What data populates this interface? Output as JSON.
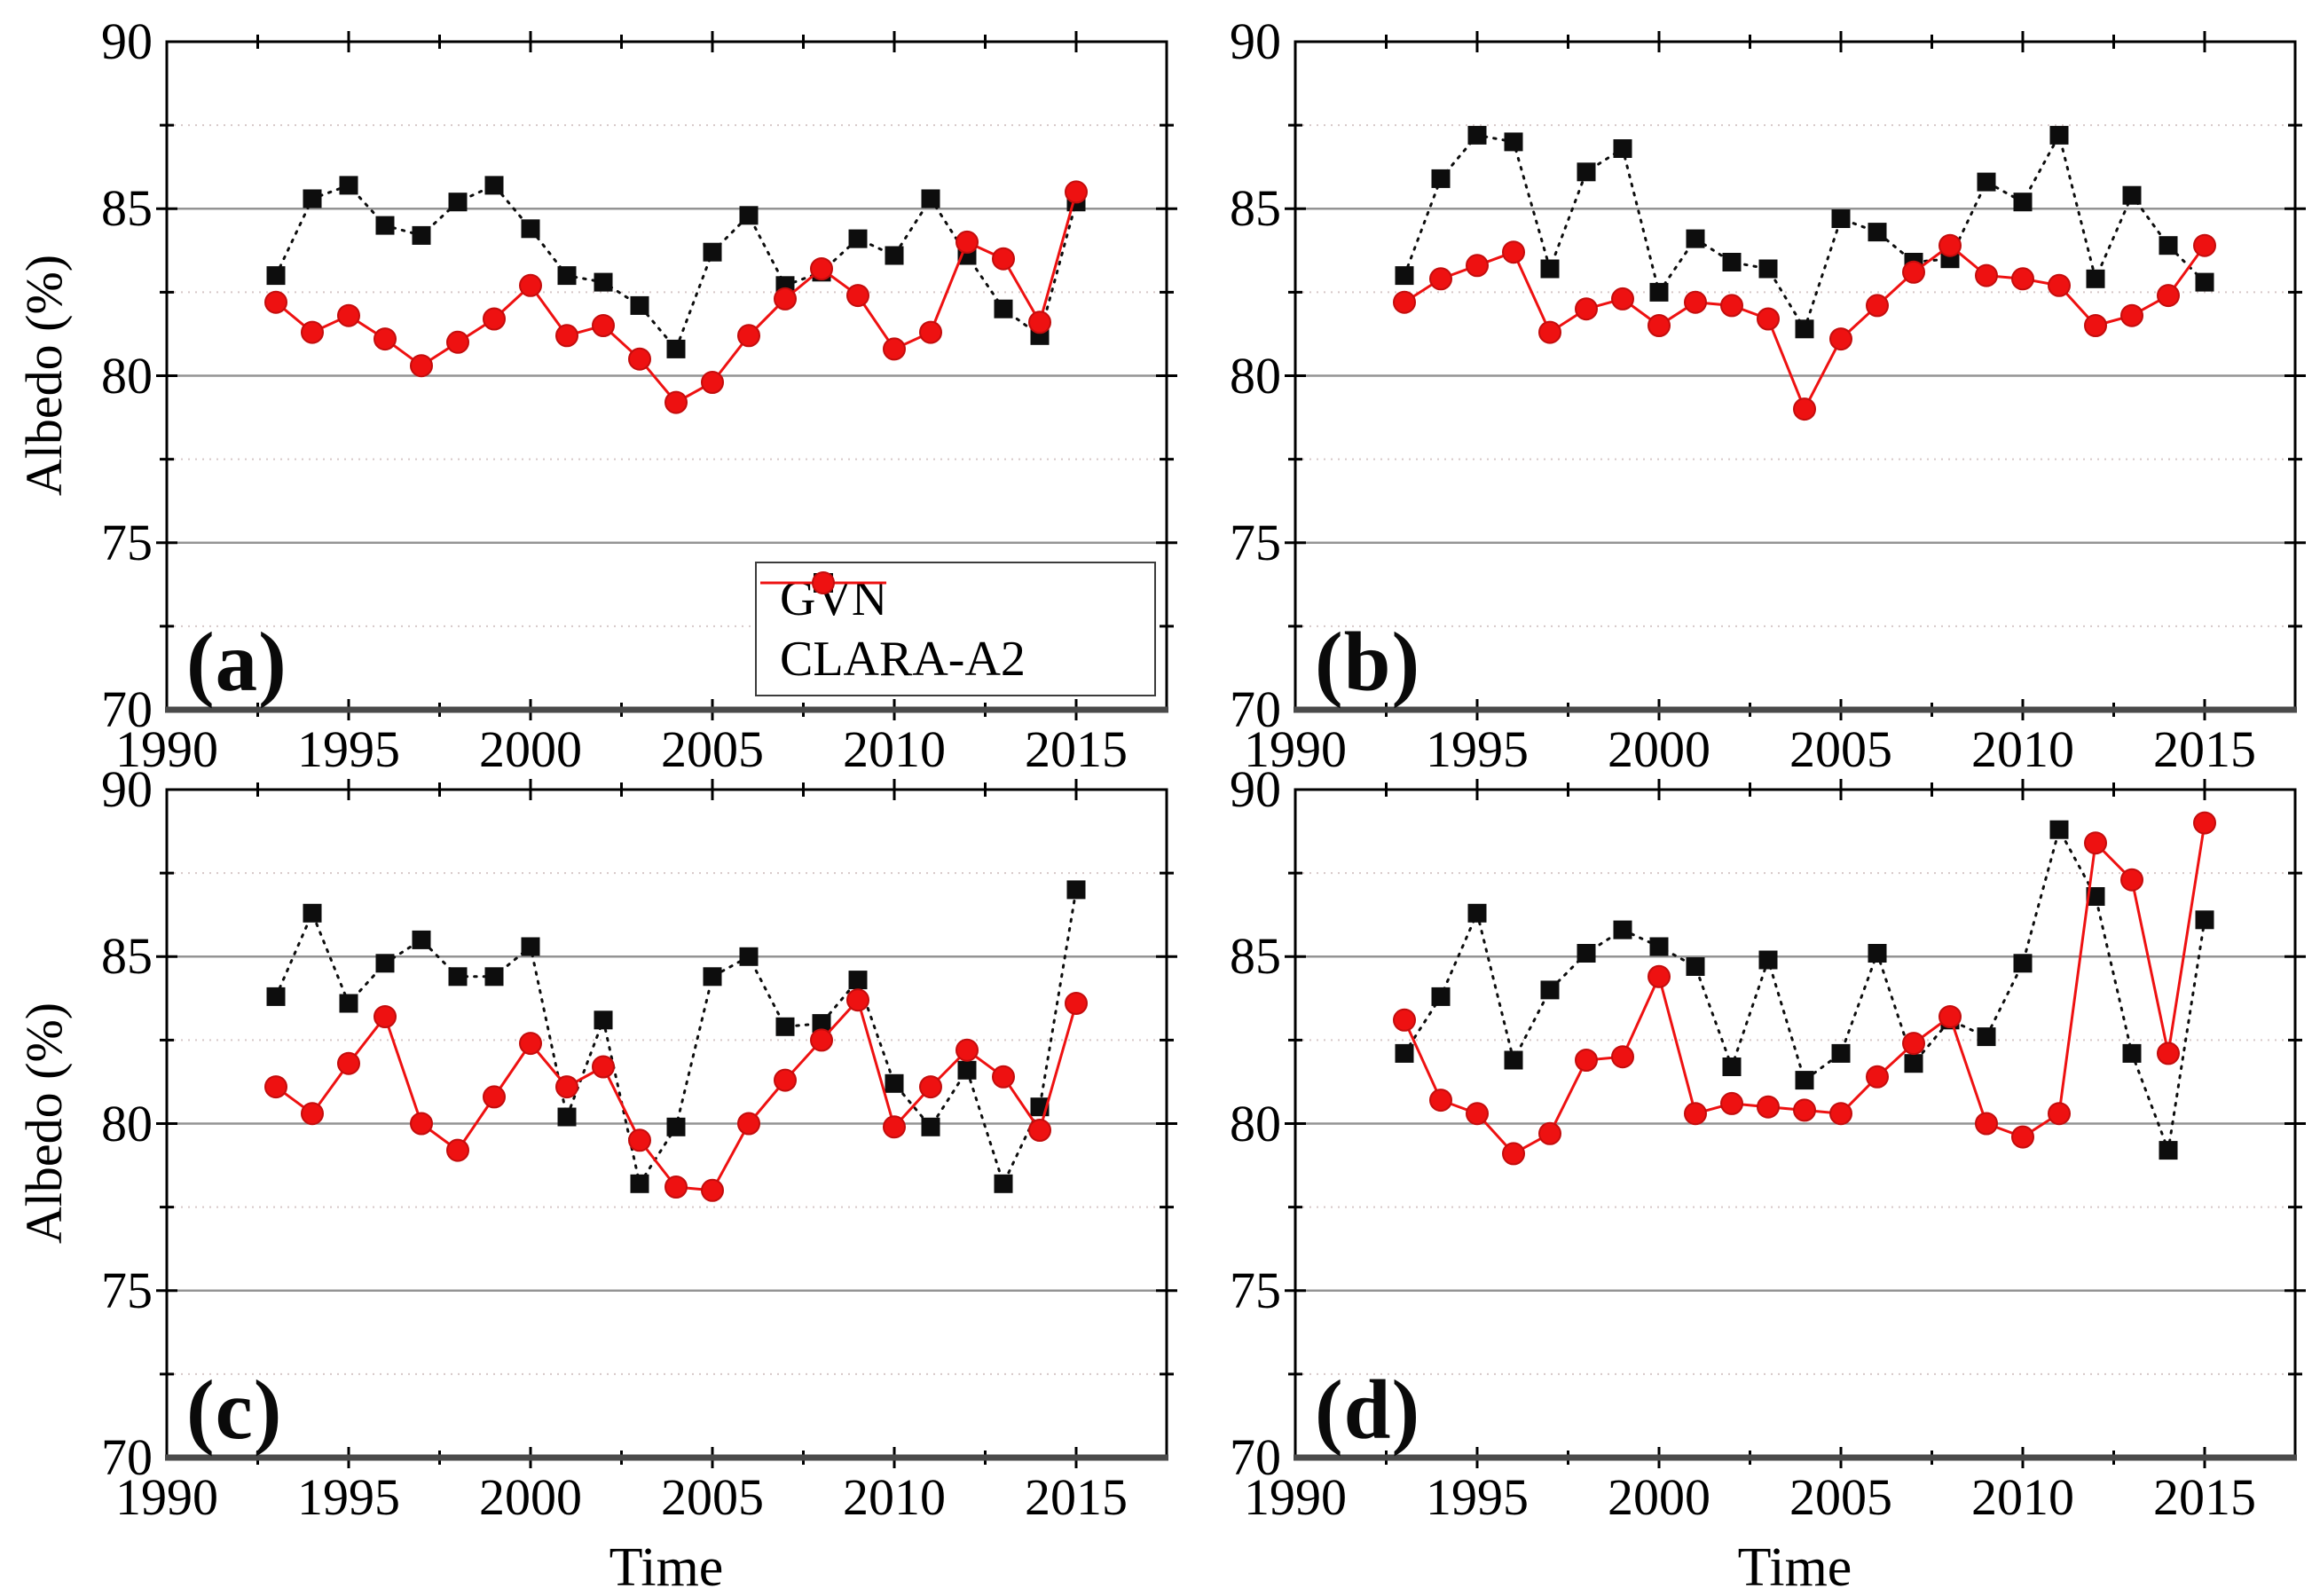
{
  "figure": {
    "background": "#ffffff",
    "axis_color": "#000000",
    "frame_bottom_color": "#4a4a4a",
    "grid_major_color": "#949494",
    "grid_minor_color": "#d6c8c8",
    "x_axis_title": "Time",
    "y_axis_title": "Albedo (%)",
    "x_tick_labels": [
      "1990",
      "1995",
      "2000",
      "2005",
      "2010",
      "2015"
    ],
    "y_tick_labels": [
      "90",
      "85",
      "80",
      "75",
      "70"
    ],
    "legend": {
      "position": "bottom-right-of-panel-a",
      "items": [
        {
          "label": "GVN",
          "marker": "square",
          "color": "#0d0d0d"
        },
        {
          "label": "CLARA-A2",
          "marker": "circle",
          "color": "#ee1111"
        }
      ]
    }
  },
  "chart_data": [
    {
      "type": "line",
      "panel_label": "(a)",
      "xlabel": "",
      "ylabel": "Albedo (%)",
      "xlim": [
        1990,
        2017.5
      ],
      "ylim": [
        70,
        90
      ],
      "x_ticks": [
        1990,
        1995,
        2000,
        2005,
        2010,
        2015
      ],
      "y_ticks": [
        90,
        85,
        80,
        75,
        70
      ],
      "grid_major_y": [
        75,
        80,
        85
      ],
      "grid_minor_y": [
        72.5,
        77.5,
        82.5,
        87.5
      ],
      "legend_visible": true,
      "x": [
        1993,
        1994,
        1995,
        1996,
        1997,
        1998,
        1999,
        2000,
        2001,
        2002,
        2003,
        2004,
        2005,
        2006,
        2007,
        2008,
        2009,
        2010,
        2011,
        2012,
        2013,
        2014,
        2015
      ],
      "series": [
        {
          "name": "GVN",
          "color": "#0d0d0d",
          "marker": "square",
          "line_style": "dotted",
          "values": [
            83.0,
            85.3,
            85.7,
            84.5,
            84.2,
            85.2,
            85.7,
            84.4,
            83.0,
            82.8,
            82.1,
            80.8,
            83.7,
            84.8,
            82.7,
            83.1,
            84.1,
            83.6,
            85.3,
            83.6,
            82.0,
            81.2,
            85.2
          ]
        },
        {
          "name": "CLARA-A2",
          "color": "#ee1111",
          "marker": "circle",
          "line_style": "solid",
          "values": [
            82.2,
            81.3,
            81.8,
            81.1,
            80.3,
            81.0,
            81.7,
            82.7,
            81.2,
            81.5,
            80.5,
            79.2,
            79.8,
            81.2,
            82.3,
            83.2,
            82.4,
            80.8,
            81.3,
            84.0,
            83.5,
            81.6,
            85.5
          ]
        }
      ]
    },
    {
      "type": "line",
      "panel_label": "(b)",
      "xlabel": "",
      "ylabel": "",
      "xlim": [
        1990,
        2017.5
      ],
      "ylim": [
        70,
        90
      ],
      "x_ticks": [
        1990,
        1995,
        2000,
        2005,
        2010,
        2015
      ],
      "y_ticks": [
        90,
        85,
        80,
        75,
        70
      ],
      "grid_major_y": [
        75,
        80,
        85
      ],
      "grid_minor_y": [
        72.5,
        77.5,
        82.5,
        87.5
      ],
      "legend_visible": false,
      "x": [
        1993,
        1994,
        1995,
        1996,
        1997,
        1998,
        1999,
        2000,
        2001,
        2002,
        2003,
        2004,
        2005,
        2006,
        2007,
        2008,
        2009,
        2010,
        2011,
        2012,
        2013,
        2014,
        2015
      ],
      "series": [
        {
          "name": "GVN",
          "color": "#0d0d0d",
          "marker": "square",
          "line_style": "dotted",
          "values": [
            83.0,
            85.9,
            87.2,
            87.0,
            83.2,
            86.1,
            86.8,
            82.5,
            84.1,
            83.4,
            83.2,
            81.4,
            84.7,
            84.3,
            83.4,
            83.5,
            85.8,
            85.2,
            87.2,
            82.9,
            85.4,
            83.9,
            82.8
          ]
        },
        {
          "name": "CLARA-A2",
          "color": "#ee1111",
          "marker": "circle",
          "line_style": "solid",
          "values": [
            82.2,
            82.9,
            83.3,
            83.7,
            81.3,
            82.0,
            82.3,
            81.5,
            82.2,
            82.1,
            81.7,
            79.0,
            81.1,
            82.1,
            83.1,
            83.9,
            83.0,
            82.9,
            82.7,
            81.5,
            81.8,
            82.4,
            83.9
          ]
        }
      ]
    },
    {
      "type": "line",
      "panel_label": "(c)",
      "xlabel": "Time",
      "ylabel": "Albedo (%)",
      "xlim": [
        1990,
        2017.5
      ],
      "ylim": [
        70,
        90
      ],
      "x_ticks": [
        1990,
        1995,
        2000,
        2005,
        2010,
        2015
      ],
      "y_ticks": [
        90,
        85,
        80,
        75,
        70
      ],
      "grid_major_y": [
        75,
        80,
        85
      ],
      "grid_minor_y": [
        72.5,
        77.5,
        82.5,
        87.5
      ],
      "legend_visible": false,
      "x": [
        1993,
        1994,
        1995,
        1996,
        1997,
        1998,
        1999,
        2000,
        2001,
        2002,
        2003,
        2004,
        2005,
        2006,
        2007,
        2008,
        2009,
        2010,
        2011,
        2012,
        2013,
        2014,
        2015
      ],
      "series": [
        {
          "name": "GVN",
          "color": "#0d0d0d",
          "marker": "square",
          "line_style": "dotted",
          "values": [
            83.8,
            86.3,
            83.6,
            84.8,
            85.5,
            84.4,
            84.4,
            85.3,
            80.2,
            83.1,
            78.2,
            79.9,
            84.4,
            85.0,
            82.9,
            83.0,
            84.3,
            81.2,
            79.9,
            81.6,
            78.2,
            80.5,
            87.0
          ]
        },
        {
          "name": "CLARA-A2",
          "color": "#ee1111",
          "marker": "circle",
          "line_style": "solid",
          "values": [
            81.1,
            80.3,
            81.8,
            83.2,
            80.0,
            79.2,
            80.8,
            82.4,
            81.1,
            81.7,
            79.5,
            78.1,
            78.0,
            80.0,
            81.3,
            82.5,
            83.7,
            79.9,
            81.1,
            82.2,
            81.4,
            79.8,
            83.6
          ]
        }
      ]
    },
    {
      "type": "line",
      "panel_label": "(d)",
      "xlabel": "Time",
      "ylabel": "",
      "xlim": [
        1990,
        2017.5
      ],
      "ylim": [
        70,
        90
      ],
      "x_ticks": [
        1990,
        1995,
        2000,
        2005,
        2010,
        2015
      ],
      "y_ticks": [
        90,
        85,
        80,
        75,
        70
      ],
      "grid_major_y": [
        75,
        80,
        85
      ],
      "grid_minor_y": [
        72.5,
        77.5,
        82.5,
        87.5
      ],
      "legend_visible": false,
      "x": [
        1993,
        1994,
        1995,
        1996,
        1997,
        1998,
        1999,
        2000,
        2001,
        2002,
        2003,
        2004,
        2005,
        2006,
        2007,
        2008,
        2009,
        2010,
        2011,
        2012,
        2013,
        2014,
        2015
      ],
      "series": [
        {
          "name": "GVN",
          "color": "#0d0d0d",
          "marker": "square",
          "line_style": "dotted",
          "values": [
            82.1,
            83.8,
            86.3,
            81.9,
            84.0,
            85.1,
            85.8,
            85.3,
            84.7,
            81.7,
            84.9,
            81.3,
            82.1,
            85.1,
            81.8,
            83.1,
            82.6,
            84.8,
            88.8,
            86.8,
            82.1,
            79.2,
            86.1
          ]
        },
        {
          "name": "CLARA-A2",
          "color": "#ee1111",
          "marker": "circle",
          "line_style": "solid",
          "values": [
            83.1,
            80.7,
            80.3,
            79.1,
            79.7,
            81.9,
            82.0,
            84.4,
            80.3,
            80.6,
            80.5,
            80.4,
            80.3,
            81.4,
            82.4,
            83.2,
            80.0,
            79.6,
            80.3,
            88.4,
            87.3,
            82.1,
            89.0
          ]
        }
      ]
    }
  ]
}
